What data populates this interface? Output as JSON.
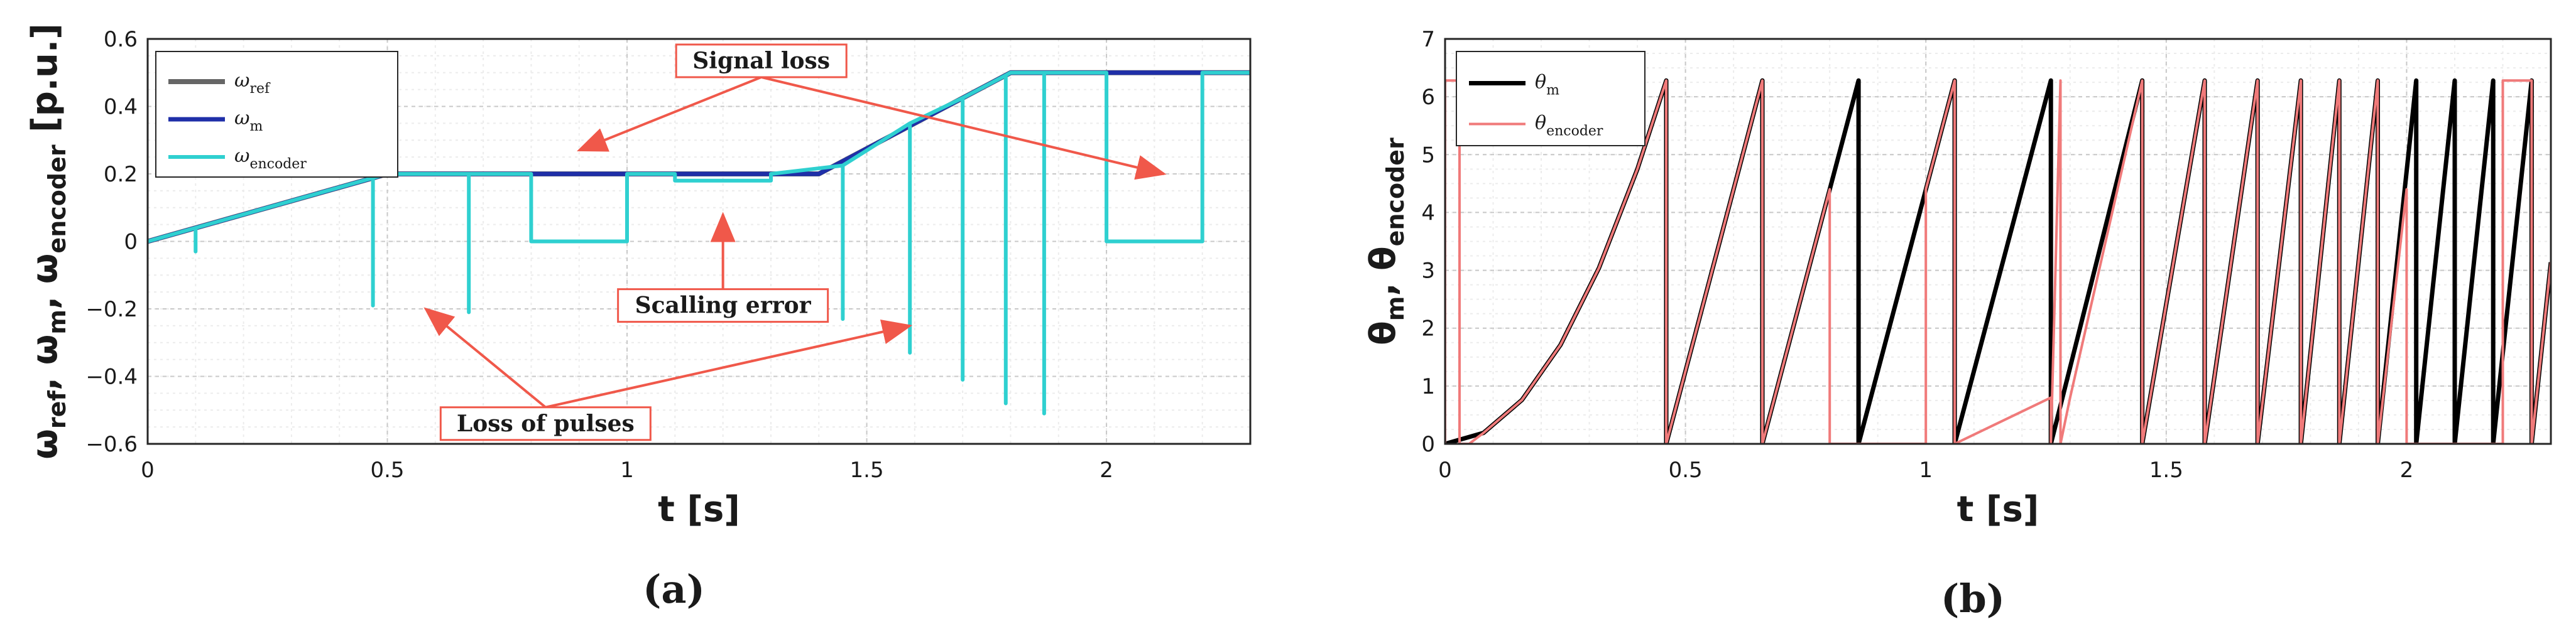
{
  "chart_data": [
    {
      "type": "line",
      "panel_label": "(a)",
      "xlabel": "t [s]",
      "ylabel_parts": [
        {
          "t": "ω"
        },
        {
          "t": "ref",
          "sub": true
        },
        {
          "t": ", ω"
        },
        {
          "t": "m",
          "sub": true
        },
        {
          "t": ", ω"
        },
        {
          "t": "encoder",
          "sub": true
        },
        {
          "t": " [p.u.]"
        }
      ],
      "xlim": [
        0,
        2.3
      ],
      "ylim": [
        -0.6,
        0.6
      ],
      "xticks": [
        0,
        0.5,
        1,
        1.5,
        2
      ],
      "xtick_labels": [
        "0",
        "0.5",
        "1",
        "1.5",
        "2"
      ],
      "yticks": [
        -0.6,
        -0.4,
        -0.2,
        0,
        0.2,
        0.4,
        0.6
      ],
      "ytick_labels": [
        "−0.6",
        "−0.4",
        "−0.2",
        "0",
        "0.2",
        "0.4",
        "0.6"
      ],
      "grid": true,
      "legend_position": "top-left",
      "series": [
        {
          "name_main": "ω",
          "name_sub": "ref",
          "color": "#666666",
          "x": [
            0,
            0.5,
            1.4,
            1.8,
            2.3
          ],
          "y": [
            0,
            0.2,
            0.2,
            0.5,
            0.5
          ]
        },
        {
          "name_main": "ω",
          "name_sub": "m",
          "color": "#1f2fa8",
          "x": [
            0,
            0.5,
            1.4,
            1.8,
            2.3
          ],
          "y": [
            0,
            0.2,
            0.2,
            0.5,
            0.5
          ]
        },
        {
          "name_main": "ω",
          "name_sub": "encoder",
          "color": "#2fd0d0",
          "x": [
            0,
            0.1,
            0.1,
            0.1,
            0.1,
            0.47,
            0.47,
            0.47,
            0.47,
            0.5,
            0.67,
            0.67,
            0.67,
            0.67,
            0.8,
            0.8,
            1.0,
            1.0,
            1.1,
            1.1,
            1.3,
            1.3,
            1.45,
            1.45,
            1.45,
            1.45,
            1.59,
            1.59,
            1.59,
            1.59,
            1.7,
            1.7,
            1.7,
            1.7,
            1.79,
            1.79,
            1.79,
            1.79,
            1.8,
            1.87,
            1.87,
            1.87,
            1.87,
            2.0,
            2.0,
            2.2,
            2.2,
            2.3
          ],
          "y": [
            0,
            0.04,
            -0.03,
            0.04,
            0.04,
            0.188,
            -0.19,
            0.188,
            0.188,
            0.2,
            0.2,
            -0.21,
            0.2,
            0.2,
            0.2,
            0,
            0,
            0.2,
            0.2,
            0.18,
            0.18,
            0.2,
            0.225,
            -0.23,
            0.225,
            0.225,
            0.35,
            -0.33,
            0.35,
            0.35,
            0.425,
            -0.41,
            0.425,
            0.425,
            0.492,
            -0.48,
            0.492,
            0.492,
            0.5,
            0.5,
            -0.51,
            0.5,
            0.5,
            0.5,
            0,
            0,
            0.5,
            0.5
          ]
        }
      ],
      "annotations": [
        {
          "text": "Signal loss",
          "at": [
            1.28,
            0.535
          ],
          "arrows": [
            [
              0.9,
              0.27
            ],
            [
              2.12,
              0.2
            ]
          ]
        },
        {
          "text": "Scalling error",
          "at": [
            1.2,
            -0.19
          ],
          "arrows": [
            [
              1.2,
              0.08
            ]
          ]
        },
        {
          "text": "Loss of pulses",
          "at": [
            0.83,
            -0.54
          ],
          "arrows": [
            [
              0.58,
              -0.2
            ],
            [
              1.59,
              -0.25
            ]
          ]
        }
      ]
    },
    {
      "type": "line",
      "panel_label": "(b)",
      "xlabel": "t [s]",
      "ylabel_parts": [
        {
          "t": "θ"
        },
        {
          "t": "m",
          "sub": true
        },
        {
          "t": ", θ"
        },
        {
          "t": "encoder",
          "sub": true
        }
      ],
      "xlim": [
        0,
        2.3
      ],
      "ylim": [
        0,
        7
      ],
      "xticks": [
        0,
        0.5,
        1,
        1.5,
        2
      ],
      "xtick_labels": [
        "0",
        "0.5",
        "1",
        "1.5",
        "2"
      ],
      "yticks": [
        0,
        1,
        2,
        3,
        4,
        5,
        6,
        7
      ],
      "ytick_labels": [
        "0",
        "1",
        "2",
        "3",
        "4",
        "5",
        "6",
        "7"
      ],
      "grid": true,
      "legend_position": "top-left",
      "series": [
        {
          "name_main": "θ",
          "name_sub": "m",
          "color": "#000000",
          "x": [
            0,
            0.08,
            0.16,
            0.24,
            0.32,
            0.4,
            0.46,
            0.46,
            0.66,
            0.66,
            0.86,
            0.86,
            1.06,
            1.06,
            1.26,
            1.26,
            1.45,
            1.45,
            1.58,
            1.58,
            1.69,
            1.69,
            1.78,
            1.78,
            1.86,
            1.86,
            1.94,
            1.94,
            2.02,
            2.02,
            2.1,
            2.1,
            2.18,
            2.18,
            2.26,
            2.26,
            2.3
          ],
          "y": [
            0,
            0.19,
            0.76,
            1.71,
            3.04,
            4.75,
            6.28,
            0,
            6.28,
            0,
            6.28,
            0,
            6.28,
            0,
            6.28,
            0,
            6.28,
            0,
            6.28,
            0,
            6.28,
            0,
            6.28,
            0,
            6.28,
            0,
            6.28,
            0,
            6.28,
            0,
            6.28,
            0,
            6.28,
            0,
            6.28,
            0,
            3.14
          ]
        },
        {
          "name_main": "θ",
          "name_sub": "encoder",
          "color": "#f07a7a",
          "x": [
            0,
            0,
            0.03,
            0.03,
            0.05,
            0.08,
            0.16,
            0.24,
            0.32,
            0.4,
            0.46,
            0.46,
            0.66,
            0.66,
            0.8,
            0.8,
            1.0,
            1.0,
            1.06,
            1.06,
            1.26,
            1.26,
            1.28,
            1.28,
            1.3,
            1.45,
            1.45,
            1.58,
            1.58,
            1.69,
            1.69,
            1.78,
            1.78,
            1.86,
            1.86,
            1.94,
            1.94,
            2.0,
            2.0,
            2.2,
            2.2,
            2.26,
            2.26,
            2.3
          ],
          "y": [
            0,
            6.28,
            6.28,
            0,
            0,
            0.19,
            0.76,
            1.71,
            3.04,
            4.75,
            6.28,
            0,
            6.28,
            0,
            4.4,
            0,
            0,
            4.4,
            6.28,
            0,
            0.8,
            0,
            6.28,
            0,
            0.8,
            6.28,
            0,
            6.28,
            0,
            6.28,
            0,
            6.28,
            0,
            6.28,
            0,
            6.28,
            0,
            4.4,
            0,
            0,
            6.28,
            6.28,
            0,
            3.14
          ]
        }
      ]
    }
  ]
}
